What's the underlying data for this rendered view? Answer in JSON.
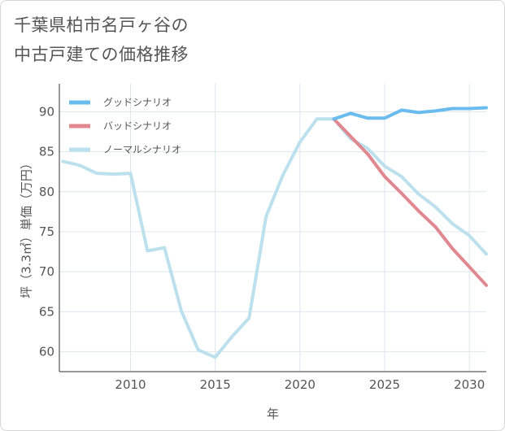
{
  "title_lines": [
    "千葉県柏市名戸ヶ谷の",
    "中古戸建ての価格推移"
  ],
  "chart_data": {
    "type": "line",
    "title": "千葉県柏市名戸ヶ谷の中古戸建ての価格推移",
    "xlabel": "年",
    "ylabel": "坪（3.3㎡）単価（万円）",
    "xlim": [
      2005.8,
      2031
    ],
    "ylim": [
      57.5,
      93.5
    ],
    "xticks": [
      2010,
      2015,
      2020,
      2025,
      2030
    ],
    "yticks": [
      60,
      65,
      70,
      75,
      80,
      85,
      90
    ],
    "grid": true,
    "legend_position": "top-left",
    "series": [
      {
        "name": "グッドシナリオ",
        "color": "#6bbcee",
        "x": [
          2022,
          2023,
          2024,
          2025,
          2026,
          2027,
          2028,
          2029,
          2030,
          2031
        ],
        "y": [
          89.1,
          89.8,
          89.2,
          89.2,
          90.2,
          89.9,
          90.1,
          90.4,
          90.4,
          90.5
        ]
      },
      {
        "name": "バッドシナリオ",
        "color": "#e0878f",
        "x": [
          2022,
          2023,
          2024,
          2025,
          2026,
          2027,
          2028,
          2029,
          2030,
          2031
        ],
        "y": [
          89.1,
          86.9,
          84.7,
          81.9,
          79.8,
          77.6,
          75.6,
          72.9,
          70.6,
          68.3
        ]
      },
      {
        "name": "ノーマルシナリオ",
        "color": "#bde0ee",
        "x": [
          2006,
          2007,
          2008,
          2009,
          2010,
          2011,
          2012,
          2013,
          2014,
          2015,
          2016,
          2017,
          2018,
          2019,
          2020,
          2021,
          2022,
          2023,
          2024,
          2025,
          2026,
          2027,
          2028,
          2029,
          2030,
          2031
        ],
        "y": [
          83.8,
          83.3,
          82.3,
          82.2,
          82.3,
          72.6,
          73.0,
          65.1,
          60.2,
          59.3,
          61.9,
          64.2,
          76.9,
          82.1,
          86.2,
          89.1,
          89.1,
          86.6,
          85.4,
          83.2,
          81.9,
          79.7,
          78.1,
          76.0,
          74.5,
          72.2
        ]
      }
    ]
  }
}
